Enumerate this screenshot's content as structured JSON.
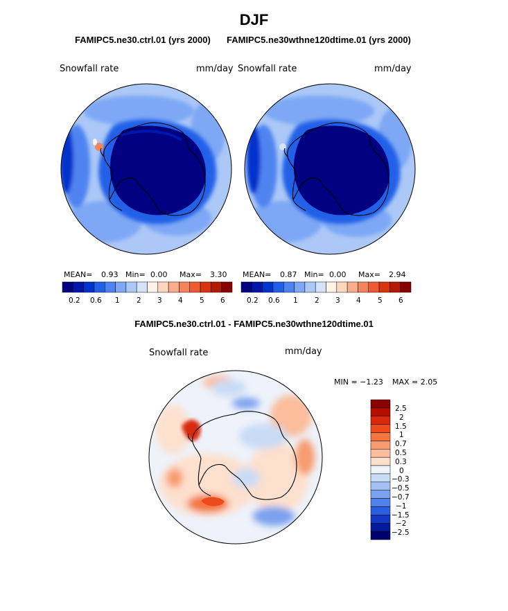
{
  "title": "DJF",
  "panels": [
    {
      "header": "FAMIPC5.ne30.ctrl.01 (yrs 2000)",
      "variable": "Snowfall rate",
      "units": "mm/day",
      "stats": {
        "mean_label": "MEAN=",
        "mean": "0.93",
        "min_label": "Min=",
        "min": "0.00",
        "max_label": "Max=",
        "max": "3.30"
      }
    },
    {
      "header": "FAMIPC5.ne30wthne120dtime.01 (yrs 2000)",
      "variable": "Snowfall rate",
      "units": "mm/day",
      "stats": {
        "mean_label": "MEAN=",
        "mean": "0.87",
        "min_label": "Min=",
        "min": "0.00",
        "max_label": "Max=",
        "max": "2.94"
      }
    }
  ],
  "colorbar": {
    "colors": [
      "#000080",
      "#0016a8",
      "#0033cc",
      "#2060e8",
      "#4f84f0",
      "#7ea8f5",
      "#abc8f7",
      "#d3e3f8",
      "#fff2e6",
      "#fcd6bd",
      "#f8ad8b",
      "#f4845c",
      "#ee5b33",
      "#d8350f",
      "#b31a00",
      "#870000"
    ],
    "tick_labels": [
      "0.2",
      "0.6",
      "1",
      "2",
      "3",
      "4",
      "5",
      "6"
    ]
  },
  "difference": {
    "header": "FAMIPC5.ne30.ctrl.01 - FAMIPC5.ne30wthne120dtime.01",
    "variable": "Snowfall rate",
    "units": "mm/day",
    "min_text": "MIN =  −1.23",
    "max_text": "MAX =    2.05",
    "colorbar": {
      "colors": [
        "#8a0000",
        "#b50d00",
        "#d8290a",
        "#ec4c1c",
        "#f4753d",
        "#f89b70",
        "#fbbd9c",
        "#fde0cd",
        "#eef2fa",
        "#c9dcf5",
        "#a3c0f2",
        "#7aa1ee",
        "#5181ea",
        "#2c5fe0",
        "#1438c4",
        "#001b9c",
        "#00006e"
      ],
      "labels": [
        "2.5",
        "2",
        "1.5",
        "1",
        "0.7",
        "0.5",
        "0.3",
        "0",
        "−0.3",
        "−0.5",
        "−0.7",
        "−1",
        "−1.5",
        "−2",
        "−2.5"
      ]
    }
  },
  "chart_data": [
    {
      "type": "heatmap",
      "title": "FAMIPC5.ne30.ctrl.01 (yrs 2000)",
      "subtitle": "Snowfall rate",
      "units": "mm/day",
      "mean": 0.93,
      "min": 0.0,
      "max": 3.3,
      "levels": [
        0.2,
        0.6,
        1,
        2,
        3,
        4,
        5,
        6
      ]
    },
    {
      "type": "heatmap",
      "title": "FAMIPC5.ne30wthne120dtime.01 (yrs 2000)",
      "subtitle": "Snowfall rate",
      "units": "mm/day",
      "mean": 0.87,
      "min": 0.0,
      "max": 2.94,
      "levels": [
        0.2,
        0.6,
        1,
        2,
        3,
        4,
        5,
        6
      ]
    },
    {
      "type": "heatmap",
      "title": "FAMIPC5.ne30.ctrl.01 - FAMIPC5.ne30wthne120dtime.01",
      "subtitle": "Snowfall rate",
      "units": "mm/day",
      "min": -1.23,
      "max": 2.05,
      "levels": [
        2.5,
        2,
        1.5,
        1,
        0.7,
        0.5,
        0.3,
        0,
        -0.3,
        -0.5,
        -0.7,
        -1,
        -1.5,
        -2,
        -2.5
      ]
    }
  ]
}
